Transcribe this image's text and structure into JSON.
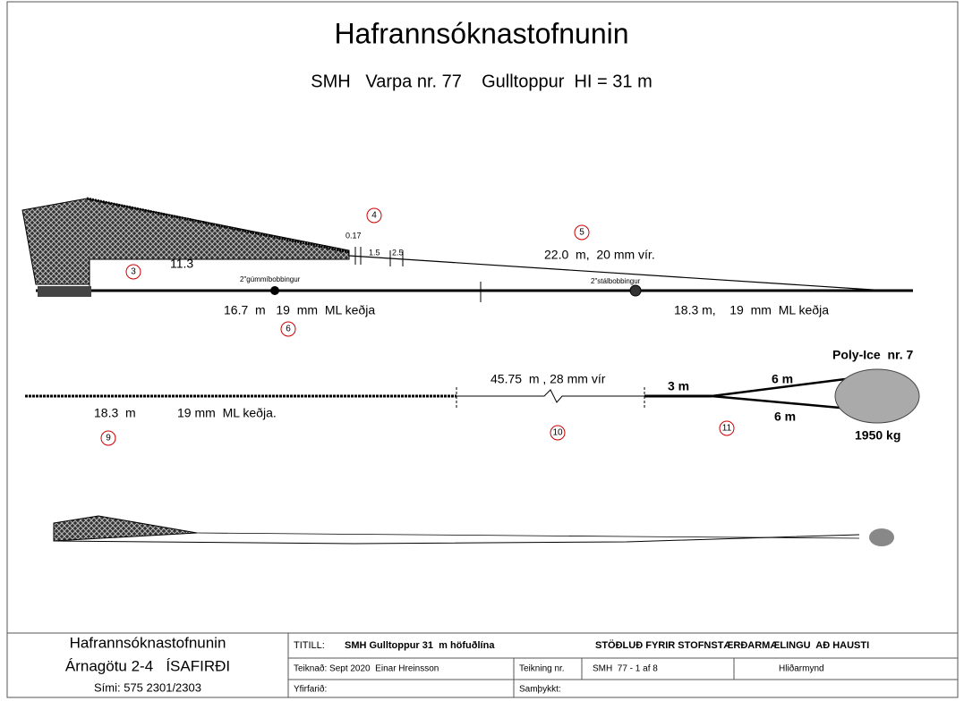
{
  "header": {
    "title": "Hafrannsóknastofnunin",
    "subtitle": "SMH   Varpa nr. 77    Gulltoppur  HI = 31 m"
  },
  "labels": [
    "4",
    "0.17",
    "1.5",
    "2.5",
    "5",
    "22.0  m,  20 mm vír.",
    "3",
    "11.3",
    "2\"gúmmíbobbingur",
    "2\"stálbobbingur",
    "16.7  m   19  mm  ML keðja",
    "6",
    "18.3 m,    19  mm  ML keðja",
    "Poly-Ice  nr. 7",
    "45.75  m , 28 mm vír",
    "3 m",
    "6 m",
    "6 m",
    "18.3  m",
    "19 mm  ML keðja.",
    "9",
    "10",
    "11",
    "1950 kg"
  ],
  "footer": {
    "org": "Hafrannsóknastofnunin",
    "address": "Árnagötu 2-4   ÍSAFIRÐI",
    "phone": "Sími: 575 2301/2303",
    "title_label": "TITILL:",
    "title": "SMH Gulltoppur 31  m höfuðlína",
    "purpose": "STÖÐLUÐ FYRIR STOFNSTÆRÐARMÆLINGU  AÐ HAUSTI",
    "drawn": "Teiknað: Sept 2020  Einar Hreinsson",
    "drawing_no_label": "Teikning nr.",
    "drawing_no": "SMH  77 - 1 af 8",
    "view": "Hliðarmynd",
    "checked": "Yfirfarið:",
    "approved": "Samþykkt:"
  }
}
